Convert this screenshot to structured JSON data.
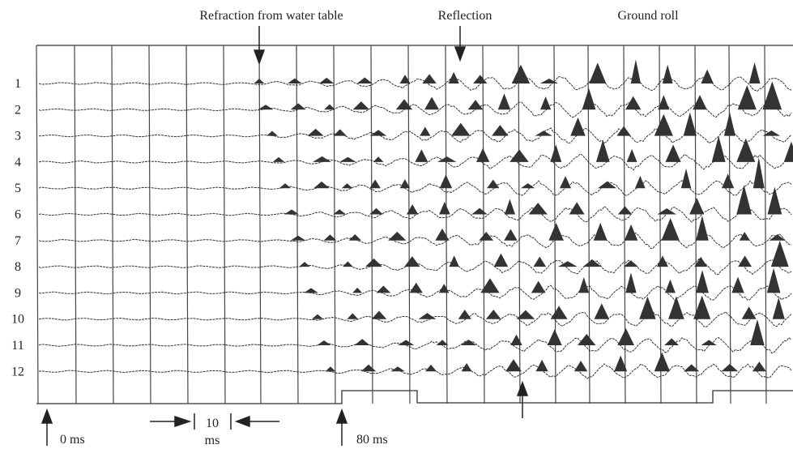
{
  "annotations": {
    "refraction": "Refraction from water  table",
    "reflection": "Reflection",
    "ground_roll": "Ground roll"
  },
  "trace_labels": [
    "1",
    "2",
    "3",
    "4",
    "5",
    "6",
    "7",
    "8",
    "9",
    "10",
    "11",
    "12"
  ],
  "time_markers": {
    "start": "0 ms",
    "scale_value": "10",
    "scale_unit": "ms",
    "end": "80 ms"
  }
}
